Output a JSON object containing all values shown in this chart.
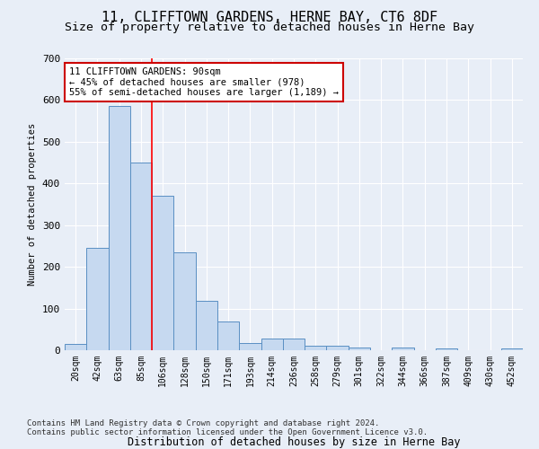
{
  "title": "11, CLIFFTOWN GARDENS, HERNE BAY, CT6 8DF",
  "subtitle": "Size of property relative to detached houses in Herne Bay",
  "xlabel": "Distribution of detached houses by size in Herne Bay",
  "ylabel": "Number of detached properties",
  "bar_labels": [
    "20sqm",
    "42sqm",
    "63sqm",
    "85sqm",
    "106sqm",
    "128sqm",
    "150sqm",
    "171sqm",
    "193sqm",
    "214sqm",
    "236sqm",
    "258sqm",
    "279sqm",
    "301sqm",
    "322sqm",
    "344sqm",
    "366sqm",
    "387sqm",
    "409sqm",
    "430sqm",
    "452sqm"
  ],
  "bar_values": [
    15,
    245,
    585,
    450,
    370,
    235,
    118,
    68,
    17,
    27,
    28,
    10,
    10,
    6,
    0,
    7,
    0,
    5,
    0,
    0,
    5
  ],
  "bar_color": "#c6d9f0",
  "bar_edge_color": "#5a8fc3",
  "red_line_x": 3.5,
  "annotation_text": "11 CLIFFTOWN GARDENS: 90sqm\n← 45% of detached houses are smaller (978)\n55% of semi-detached houses are larger (1,189) →",
  "ylim": [
    0,
    700
  ],
  "yticks": [
    0,
    100,
    200,
    300,
    400,
    500,
    600,
    700
  ],
  "footer1": "Contains HM Land Registry data © Crown copyright and database right 2024.",
  "footer2": "Contains public sector information licensed under the Open Government Licence v3.0.",
  "bg_color": "#e8eef7",
  "plot_bg_color": "#e8eef7",
  "grid_color": "#ffffff",
  "title_fontsize": 11,
  "subtitle_fontsize": 9.5,
  "annotation_box_color": "#ffffff",
  "annotation_border_color": "#cc0000",
  "footer_fontsize": 6.5
}
